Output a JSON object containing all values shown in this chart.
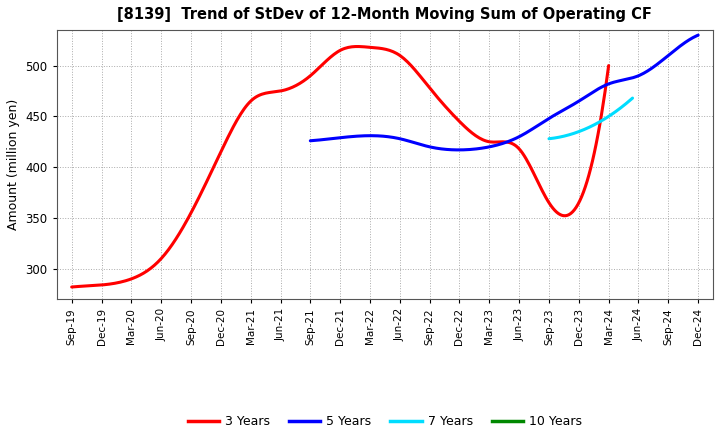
{
  "title": "[8139]  Trend of StDev of 12-Month Moving Sum of Operating CF",
  "ylabel": "Amount (million yen)",
  "background_color": "#ffffff",
  "ylim": [
    270,
    535
  ],
  "yticks": [
    300,
    350,
    400,
    450,
    500
  ],
  "line_width": 2.2,
  "xtick_labels": [
    "Sep-19",
    "Dec-19",
    "Mar-20",
    "Jun-20",
    "Sep-20",
    "Dec-20",
    "Mar-21",
    "Jun-21",
    "Sep-21",
    "Dec-21",
    "Mar-22",
    "Jun-22",
    "Sep-22",
    "Dec-22",
    "Mar-23",
    "Jun-23",
    "Sep-23",
    "Dec-23",
    "Mar-24",
    "Jun-24",
    "Sep-24",
    "Dec-24"
  ],
  "series_3y": {
    "color": "#ff0000",
    "x": [
      0,
      1,
      2,
      3,
      4,
      5,
      6,
      7,
      8,
      9,
      10,
      11,
      12,
      13,
      14,
      15,
      16,
      17,
      18
    ],
    "y": [
      282,
      284,
      290,
      310,
      355,
      415,
      465,
      475,
      490,
      515,
      518,
      510,
      478,
      445,
      425,
      418,
      365,
      365,
      500
    ]
  },
  "series_5y": {
    "color": "#0000ff",
    "x": [
      8,
      9,
      10,
      11,
      12,
      13,
      14,
      15,
      16,
      17,
      18,
      19,
      20,
      21
    ],
    "y": [
      426,
      429,
      431,
      428,
      420,
      417,
      420,
      430,
      448,
      465,
      482,
      490,
      510,
      530
    ]
  },
  "series_7y": {
    "color": "#00ddff",
    "x": [
      16,
      17,
      18,
      19
    ],
    "y": [
      428,
      435,
      450,
      468
    ]
  },
  "series_10y": {
    "color": "#008800",
    "x": [],
    "y": []
  },
  "legend_labels": [
    "3 Years",
    "5 Years",
    "7 Years",
    "10 Years"
  ],
  "legend_colors": [
    "#ff0000",
    "#0000ff",
    "#00ddff",
    "#008800"
  ]
}
